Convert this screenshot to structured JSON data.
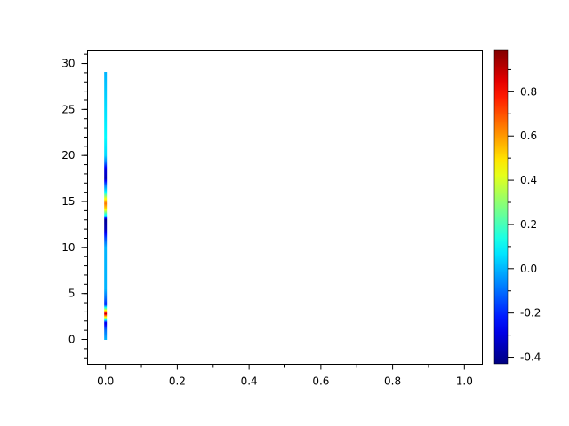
{
  "chart_data": {
    "type": "heatmap",
    "title": "",
    "xlabel": "",
    "ylabel": "",
    "xlim": [
      -0.05,
      1.05
    ],
    "ylim": [
      -2.7,
      31.45
    ],
    "x_ticks": [
      "0.0",
      "0.2",
      "0.4",
      "0.6",
      "0.8",
      "1.0"
    ],
    "y_ticks": [
      "0",
      "5",
      "10",
      "15",
      "20",
      "25",
      "30"
    ],
    "grid": false,
    "colormap": "jet",
    "colorbar": {
      "range": [
        -0.43,
        0.99
      ],
      "ticks": [
        "-0.4",
        "-0.2",
        "0.0",
        "0.2",
        "0.4",
        "0.6",
        "0.8"
      ],
      "placement": "right"
    },
    "strip": {
      "x": 0.0,
      "profile": [
        {
          "y": 0,
          "v": 0.0
        },
        {
          "y": 1,
          "v": -0.1
        },
        {
          "y": 1.8,
          "v": -0.3
        },
        {
          "y": 2.3,
          "v": 0.3
        },
        {
          "y": 2.8,
          "v": 0.9
        },
        {
          "y": 3.3,
          "v": 0.3
        },
        {
          "y": 3.8,
          "v": -0.2
        },
        {
          "y": 4.5,
          "v": -0.1
        },
        {
          "y": 5.5,
          "v": 0.0
        },
        {
          "y": 10,
          "v": 0.0
        },
        {
          "y": 11,
          "v": -0.15
        },
        {
          "y": 12,
          "v": -0.35
        },
        {
          "y": 13,
          "v": -0.4
        },
        {
          "y": 13.5,
          "v": 0.1
        },
        {
          "y": 14.2,
          "v": 0.5
        },
        {
          "y": 14.8,
          "v": 0.65
        },
        {
          "y": 15.4,
          "v": 0.4
        },
        {
          "y": 16,
          "v": 0.1
        },
        {
          "y": 16.8,
          "v": -0.1
        },
        {
          "y": 17.5,
          "v": -0.35
        },
        {
          "y": 18.5,
          "v": -0.3
        },
        {
          "y": 19.2,
          "v": -0.1
        },
        {
          "y": 20,
          "v": 0.05
        },
        {
          "y": 22,
          "v": 0.1
        },
        {
          "y": 29,
          "v": 0.0
        }
      ]
    }
  }
}
